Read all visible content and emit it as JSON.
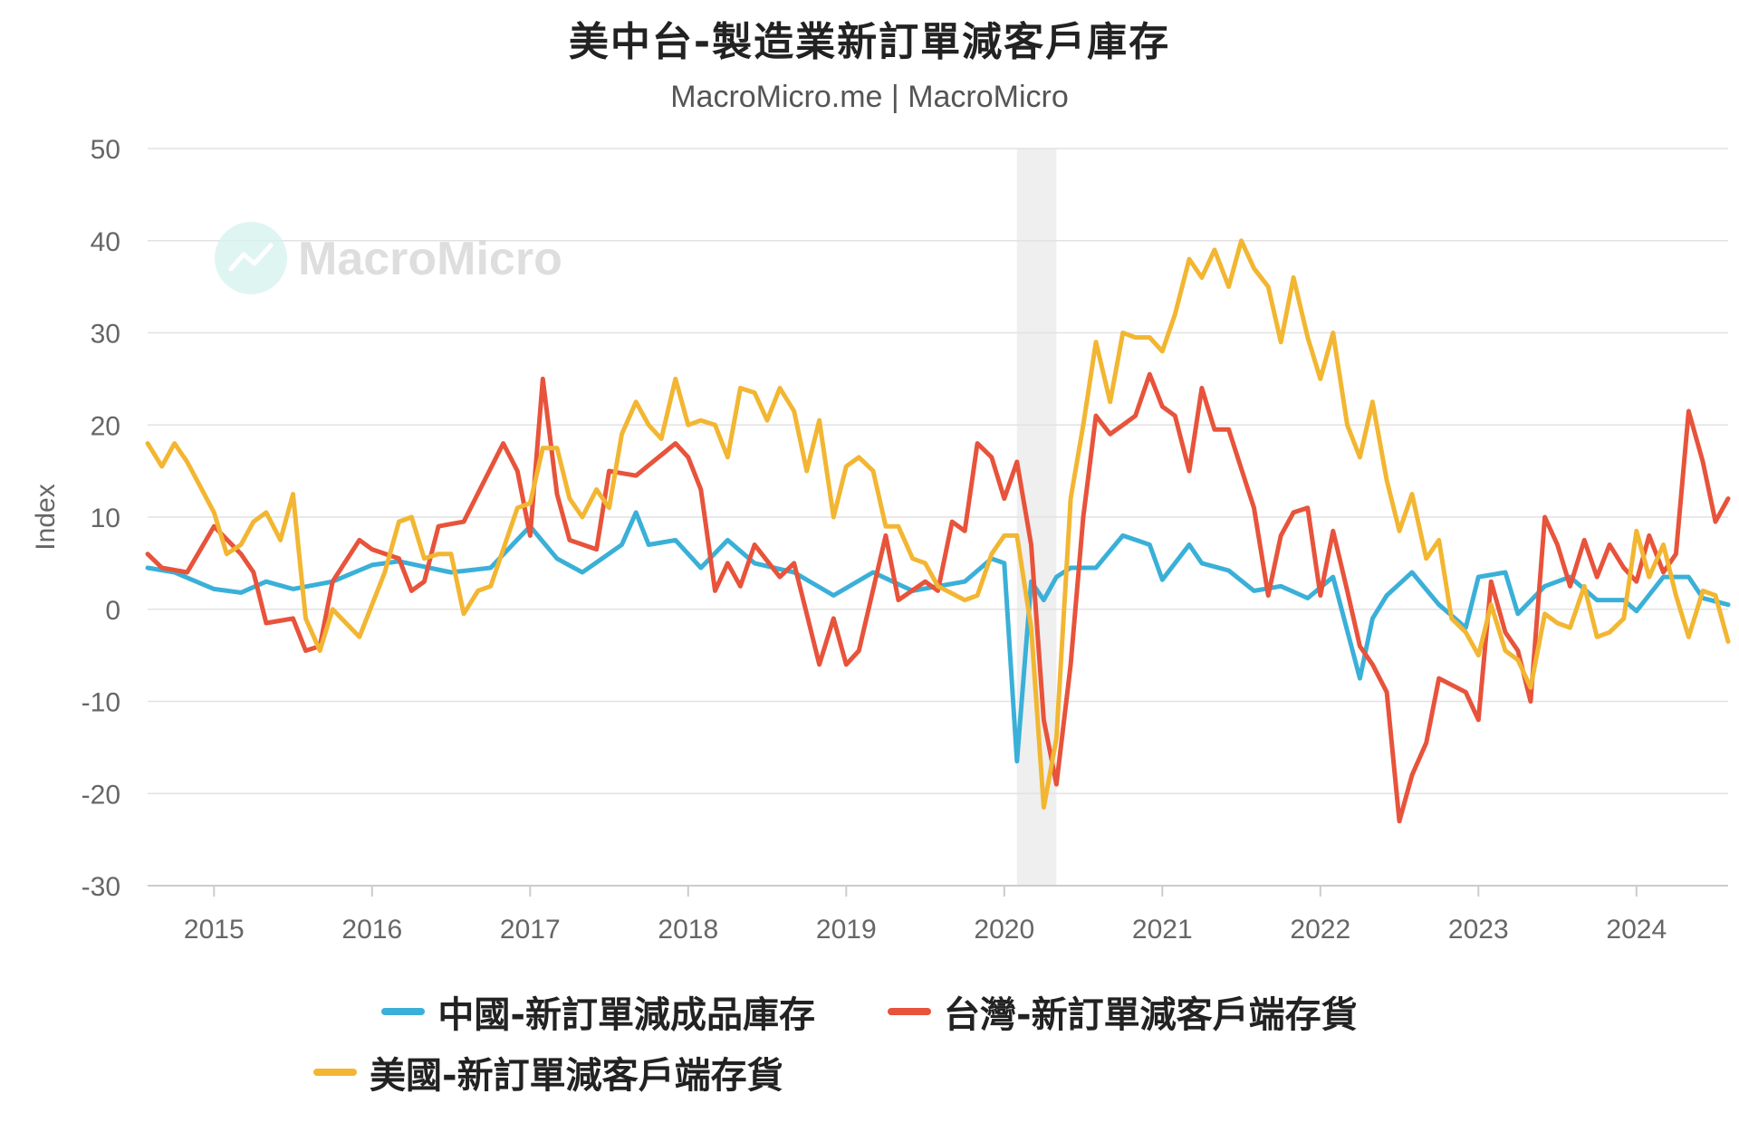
{
  "title": "美中台-製造業新訂單減客戶庫存",
  "subtitle": "MacroMicro.me | MacroMicro",
  "watermark": "MacroMicro",
  "colors": {
    "china": "#3ab0d8",
    "taiwan": "#e8533b",
    "usa": "#f2b632",
    "recession": "#efefef",
    "grid": "#e2e2e2"
  },
  "legend": {
    "china": "中國-新訂單減成品庫存",
    "taiwan": "台灣-新訂單減客戶端存貨",
    "usa": "美國-新訂單減客戶端存貨"
  },
  "chart_data": {
    "type": "line",
    "title": "美中台-製造業新訂單減客戶庫存",
    "ylabel": "Index",
    "ylim": [
      -30,
      50
    ],
    "yticks": [
      50,
      40,
      30,
      20,
      10,
      0,
      -10,
      -20,
      -30
    ],
    "xlim": [
      2014.58,
      2024.58
    ],
    "xticks": [
      "2015",
      "2016",
      "2017",
      "2018",
      "2019",
      "2020",
      "2021",
      "2022",
      "2023",
      "2024"
    ],
    "shaded_period": [
      2020.08,
      2020.33
    ],
    "grid": true,
    "legend_position": "bottom",
    "series": [
      {
        "name": "中國-新訂單減成品庫存",
        "color": "#3ab0d8",
        "anchors": [
          [
            2014.58,
            4.5
          ],
          [
            2014.75,
            4
          ],
          [
            2015.0,
            2.2
          ],
          [
            2015.17,
            1.8
          ],
          [
            2015.33,
            3
          ],
          [
            2015.5,
            2.2
          ],
          [
            2015.75,
            3
          ],
          [
            2016.0,
            4.8
          ],
          [
            2016.17,
            5.2
          ],
          [
            2016.5,
            4
          ],
          [
            2016.75,
            4.5
          ],
          [
            2017.0,
            9
          ],
          [
            2017.17,
            5.5
          ],
          [
            2017.33,
            4
          ],
          [
            2017.58,
            7
          ],
          [
            2017.67,
            10.5
          ],
          [
            2017.75,
            7
          ],
          [
            2017.92,
            7.5
          ],
          [
            2018.08,
            4.5
          ],
          [
            2018.25,
            7.5
          ],
          [
            2018.42,
            5
          ],
          [
            2018.67,
            4
          ],
          [
            2018.92,
            1.5
          ],
          [
            2019.17,
            4
          ],
          [
            2019.42,
            2
          ],
          [
            2019.58,
            2.5
          ],
          [
            2019.75,
            3
          ],
          [
            2019.92,
            5.5
          ],
          [
            2020.0,
            5
          ],
          [
            2020.08,
            -16.5
          ],
          [
            2020.17,
            3
          ],
          [
            2020.25,
            1
          ],
          [
            2020.33,
            3.5
          ],
          [
            2020.42,
            4.5
          ],
          [
            2020.58,
            4.5
          ],
          [
            2020.75,
            8
          ],
          [
            2020.92,
            7
          ],
          [
            2021.0,
            3.2
          ],
          [
            2021.17,
            7
          ],
          [
            2021.25,
            5
          ],
          [
            2021.42,
            4.2
          ],
          [
            2021.58,
            2
          ],
          [
            2021.75,
            2.5
          ],
          [
            2021.92,
            1.2
          ],
          [
            2022.08,
            3.5
          ],
          [
            2022.25,
            -7.5
          ],
          [
            2022.33,
            -1
          ],
          [
            2022.42,
            1.5
          ],
          [
            2022.58,
            4
          ],
          [
            2022.75,
            0.5
          ],
          [
            2022.92,
            -2
          ],
          [
            2023.0,
            3.5
          ],
          [
            2023.17,
            4
          ],
          [
            2023.25,
            -0.5
          ],
          [
            2023.42,
            2.5
          ],
          [
            2023.58,
            3.5
          ],
          [
            2023.75,
            1
          ],
          [
            2023.92,
            1
          ],
          [
            2024.0,
            -0.2
          ],
          [
            2024.17,
            3.5
          ],
          [
            2024.33,
            3.5
          ],
          [
            2024.42,
            1.2
          ],
          [
            2024.58,
            0.5
          ]
        ]
      },
      {
        "name": "台灣-新訂單減客戶端存貨",
        "color": "#e8533b",
        "anchors": [
          [
            2014.58,
            6
          ],
          [
            2014.67,
            4.5
          ],
          [
            2014.83,
            4
          ],
          [
            2015.0,
            9
          ],
          [
            2015.17,
            6
          ],
          [
            2015.25,
            4
          ],
          [
            2015.33,
            -1.5
          ],
          [
            2015.5,
            -1
          ],
          [
            2015.58,
            -4.5
          ],
          [
            2015.67,
            -4
          ],
          [
            2015.75,
            3
          ],
          [
            2015.92,
            7.5
          ],
          [
            2016.0,
            6.5
          ],
          [
            2016.17,
            5.5
          ],
          [
            2016.25,
            2
          ],
          [
            2016.33,
            3
          ],
          [
            2016.42,
            9
          ],
          [
            2016.58,
            9.5
          ],
          [
            2016.83,
            18
          ],
          [
            2016.92,
            15
          ],
          [
            2017.0,
            8
          ],
          [
            2017.08,
            25
          ],
          [
            2017.17,
            12.5
          ],
          [
            2017.25,
            7.5
          ],
          [
            2017.42,
            6.5
          ],
          [
            2017.5,
            15
          ],
          [
            2017.67,
            14.5
          ],
          [
            2017.92,
            18
          ],
          [
            2018.0,
            16.5
          ],
          [
            2018.08,
            13
          ],
          [
            2018.17,
            2
          ],
          [
            2018.25,
            5
          ],
          [
            2018.33,
            2.5
          ],
          [
            2018.42,
            7
          ],
          [
            2018.58,
            3.5
          ],
          [
            2018.67,
            5
          ],
          [
            2018.83,
            -6
          ],
          [
            2018.92,
            -1
          ],
          [
            2019.0,
            -6
          ],
          [
            2019.08,
            -4.5
          ],
          [
            2019.25,
            8
          ],
          [
            2019.33,
            1
          ],
          [
            2019.5,
            3
          ],
          [
            2019.58,
            2
          ],
          [
            2019.67,
            9.5
          ],
          [
            2019.75,
            8.5
          ],
          [
            2019.83,
            18
          ],
          [
            2019.92,
            16.5
          ],
          [
            2020.0,
            12
          ],
          [
            2020.08,
            16
          ],
          [
            2020.17,
            7
          ],
          [
            2020.25,
            -12
          ],
          [
            2020.33,
            -19
          ],
          [
            2020.42,
            -6
          ],
          [
            2020.5,
            10
          ],
          [
            2020.58,
            21
          ],
          [
            2020.67,
            19
          ],
          [
            2020.83,
            21
          ],
          [
            2020.92,
            25.5
          ],
          [
            2021.0,
            22
          ],
          [
            2021.08,
            21
          ],
          [
            2021.17,
            15
          ],
          [
            2021.25,
            24
          ],
          [
            2021.33,
            19.5
          ],
          [
            2021.42,
            19.5
          ],
          [
            2021.58,
            11
          ],
          [
            2021.67,
            1.5
          ],
          [
            2021.75,
            8
          ],
          [
            2021.83,
            10.5
          ],
          [
            2021.92,
            11
          ],
          [
            2022.0,
            1.5
          ],
          [
            2022.08,
            8.5
          ],
          [
            2022.17,
            2
          ],
          [
            2022.25,
            -4
          ],
          [
            2022.33,
            -6
          ],
          [
            2022.42,
            -9
          ],
          [
            2022.5,
            -23
          ],
          [
            2022.58,
            -18
          ],
          [
            2022.67,
            -14.5
          ],
          [
            2022.75,
            -7.5
          ],
          [
            2022.92,
            -9
          ],
          [
            2023.0,
            -12
          ],
          [
            2023.08,
            3
          ],
          [
            2023.17,
            -2.5
          ],
          [
            2023.25,
            -4.5
          ],
          [
            2023.33,
            -10
          ],
          [
            2023.42,
            10
          ],
          [
            2023.5,
            7
          ],
          [
            2023.58,
            2.5
          ],
          [
            2023.67,
            7.5
          ],
          [
            2023.75,
            3.5
          ],
          [
            2023.83,
            7
          ],
          [
            2023.92,
            4.5
          ],
          [
            2024.0,
            3
          ],
          [
            2024.08,
            8
          ],
          [
            2024.17,
            4
          ],
          [
            2024.25,
            6
          ],
          [
            2024.33,
            21.5
          ],
          [
            2024.42,
            16
          ],
          [
            2024.5,
            9.5
          ],
          [
            2024.58,
            12
          ]
        ]
      },
      {
        "name": "美國-新訂單減客戶端存貨",
        "color": "#f2b632",
        "anchors": [
          [
            2014.58,
            18
          ],
          [
            2014.67,
            15.5
          ],
          [
            2014.75,
            18
          ],
          [
            2014.83,
            16
          ],
          [
            2015.0,
            10.5
          ],
          [
            2015.08,
            6
          ],
          [
            2015.17,
            7
          ],
          [
            2015.25,
            9.5
          ],
          [
            2015.33,
            10.5
          ],
          [
            2015.42,
            7.5
          ],
          [
            2015.5,
            12.5
          ],
          [
            2015.58,
            -1
          ],
          [
            2015.67,
            -4.5
          ],
          [
            2015.75,
            0
          ],
          [
            2015.92,
            -3
          ],
          [
            2016.08,
            4
          ],
          [
            2016.17,
            9.5
          ],
          [
            2016.25,
            10
          ],
          [
            2016.33,
            5.5
          ],
          [
            2016.42,
            6
          ],
          [
            2016.5,
            6
          ],
          [
            2016.58,
            -0.5
          ],
          [
            2016.67,
            2
          ],
          [
            2016.75,
            2.5
          ],
          [
            2016.92,
            11
          ],
          [
            2017.0,
            11.5
          ],
          [
            2017.08,
            17.5
          ],
          [
            2017.17,
            17.5
          ],
          [
            2017.25,
            12
          ],
          [
            2017.33,
            10
          ],
          [
            2017.42,
            13
          ],
          [
            2017.5,
            11
          ],
          [
            2017.58,
            19
          ],
          [
            2017.67,
            22.5
          ],
          [
            2017.75,
            20
          ],
          [
            2017.83,
            18.5
          ],
          [
            2017.92,
            25
          ],
          [
            2018.0,
            20
          ],
          [
            2018.08,
            20.5
          ],
          [
            2018.17,
            20
          ],
          [
            2018.25,
            16.5
          ],
          [
            2018.33,
            24
          ],
          [
            2018.42,
            23.5
          ],
          [
            2018.5,
            20.5
          ],
          [
            2018.58,
            24
          ],
          [
            2018.67,
            21.5
          ],
          [
            2018.75,
            15
          ],
          [
            2018.83,
            20.5
          ],
          [
            2018.92,
            10
          ],
          [
            2019.0,
            15.5
          ],
          [
            2019.08,
            16.5
          ],
          [
            2019.17,
            15
          ],
          [
            2019.25,
            9
          ],
          [
            2019.33,
            9
          ],
          [
            2019.42,
            5.5
          ],
          [
            2019.5,
            5
          ],
          [
            2019.58,
            2.5
          ],
          [
            2019.75,
            1
          ],
          [
            2019.83,
            1.5
          ],
          [
            2019.92,
            6
          ],
          [
            2020.0,
            8
          ],
          [
            2020.08,
            8
          ],
          [
            2020.17,
            -2
          ],
          [
            2020.25,
            -21.5
          ],
          [
            2020.33,
            -14
          ],
          [
            2020.42,
            12
          ],
          [
            2020.5,
            20
          ],
          [
            2020.58,
            29
          ],
          [
            2020.67,
            22.5
          ],
          [
            2020.75,
            30
          ],
          [
            2020.83,
            29.5
          ],
          [
            2020.92,
            29.5
          ],
          [
            2021.0,
            28
          ],
          [
            2021.08,
            32
          ],
          [
            2021.17,
            38
          ],
          [
            2021.25,
            36
          ],
          [
            2021.33,
            39
          ],
          [
            2021.42,
            35
          ],
          [
            2021.5,
            40
          ],
          [
            2021.58,
            37
          ],
          [
            2021.67,
            35
          ],
          [
            2021.75,
            29
          ],
          [
            2021.83,
            36
          ],
          [
            2021.92,
            29.5
          ],
          [
            2022.0,
            25
          ],
          [
            2022.08,
            30
          ],
          [
            2022.17,
            20
          ],
          [
            2022.25,
            16.5
          ],
          [
            2022.33,
            22.5
          ],
          [
            2022.42,
            14
          ],
          [
            2022.5,
            8.5
          ],
          [
            2022.58,
            12.5
          ],
          [
            2022.67,
            5.5
          ],
          [
            2022.75,
            7.5
          ],
          [
            2022.83,
            -1
          ],
          [
            2022.92,
            -2.5
          ],
          [
            2023.0,
            -5
          ],
          [
            2023.08,
            0.5
          ],
          [
            2023.17,
            -4.5
          ],
          [
            2023.25,
            -5.5
          ],
          [
            2023.33,
            -8.5
          ],
          [
            2023.42,
            -0.5
          ],
          [
            2023.5,
            -1.5
          ],
          [
            2023.58,
            -2
          ],
          [
            2023.67,
            2.5
          ],
          [
            2023.75,
            -3
          ],
          [
            2023.83,
            -2.5
          ],
          [
            2023.92,
            -1
          ],
          [
            2024.0,
            8.5
          ],
          [
            2024.08,
            3.5
          ],
          [
            2024.17,
            7
          ],
          [
            2024.25,
            1.5
          ],
          [
            2024.33,
            -3
          ],
          [
            2024.42,
            2
          ],
          [
            2024.5,
            1.5
          ],
          [
            2024.58,
            -3.5
          ]
        ]
      }
    ]
  }
}
